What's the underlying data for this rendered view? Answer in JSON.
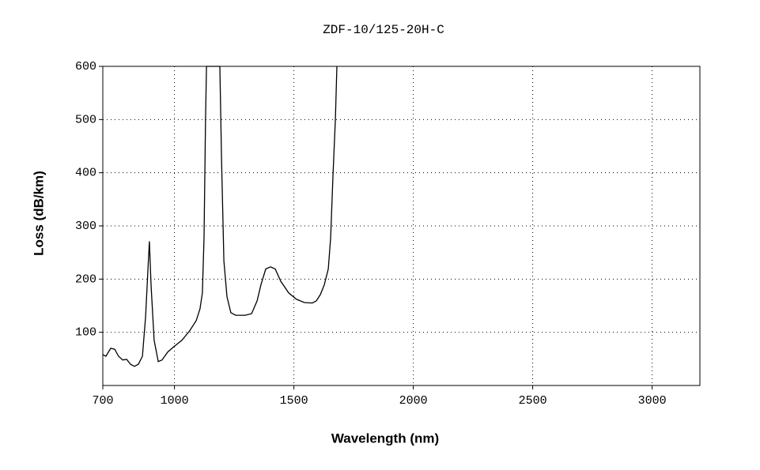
{
  "chart_data": {
    "type": "line",
    "title": "ZDF-10/125-20H-C",
    "x_label": "Wavelength (nm)",
    "y_label": "Loss (dB/km)",
    "xlim": [
      700,
      3200
    ],
    "ylim": [
      0,
      600
    ],
    "xticks": [
      700,
      1000,
      1500,
      2000,
      2500,
      3000
    ],
    "yticks": [
      100,
      200,
      300,
      400,
      500,
      600
    ],
    "grid": true,
    "series": [
      {
        "name": "Loss",
        "color": "#000000",
        "x": [
          700,
          713,
          733,
          750,
          766,
          783,
          800,
          816,
          832,
          849,
          866,
          879,
          889,
          895,
          902,
          915,
          932,
          948,
          972,
          998,
          1031,
          1064,
          1091,
          1107,
          1117,
          1124,
          1130,
          1134,
          1190,
          1197,
          1207,
          1220,
          1236,
          1256,
          1296,
          1323,
          1346,
          1362,
          1382,
          1402,
          1422,
          1445,
          1478,
          1511,
          1544,
          1577,
          1594,
          1611,
          1627,
          1644,
          1654,
          1664,
          1674,
          1680
        ],
        "values": [
          58,
          55,
          70,
          68,
          55,
          48,
          49,
          40,
          36,
          40,
          55,
          129,
          219,
          271,
          189,
          85,
          45,
          48,
          63,
          73,
          85,
          103,
          122,
          144,
          174,
          278,
          501,
          600,
          600,
          427,
          234,
          167,
          137,
          132,
          132,
          135,
          159,
          189,
          219,
          223,
          219,
          196,
          174,
          162,
          156,
          155,
          159,
          171,
          189,
          219,
          278,
          397,
          501,
          600
        ]
      }
    ]
  }
}
